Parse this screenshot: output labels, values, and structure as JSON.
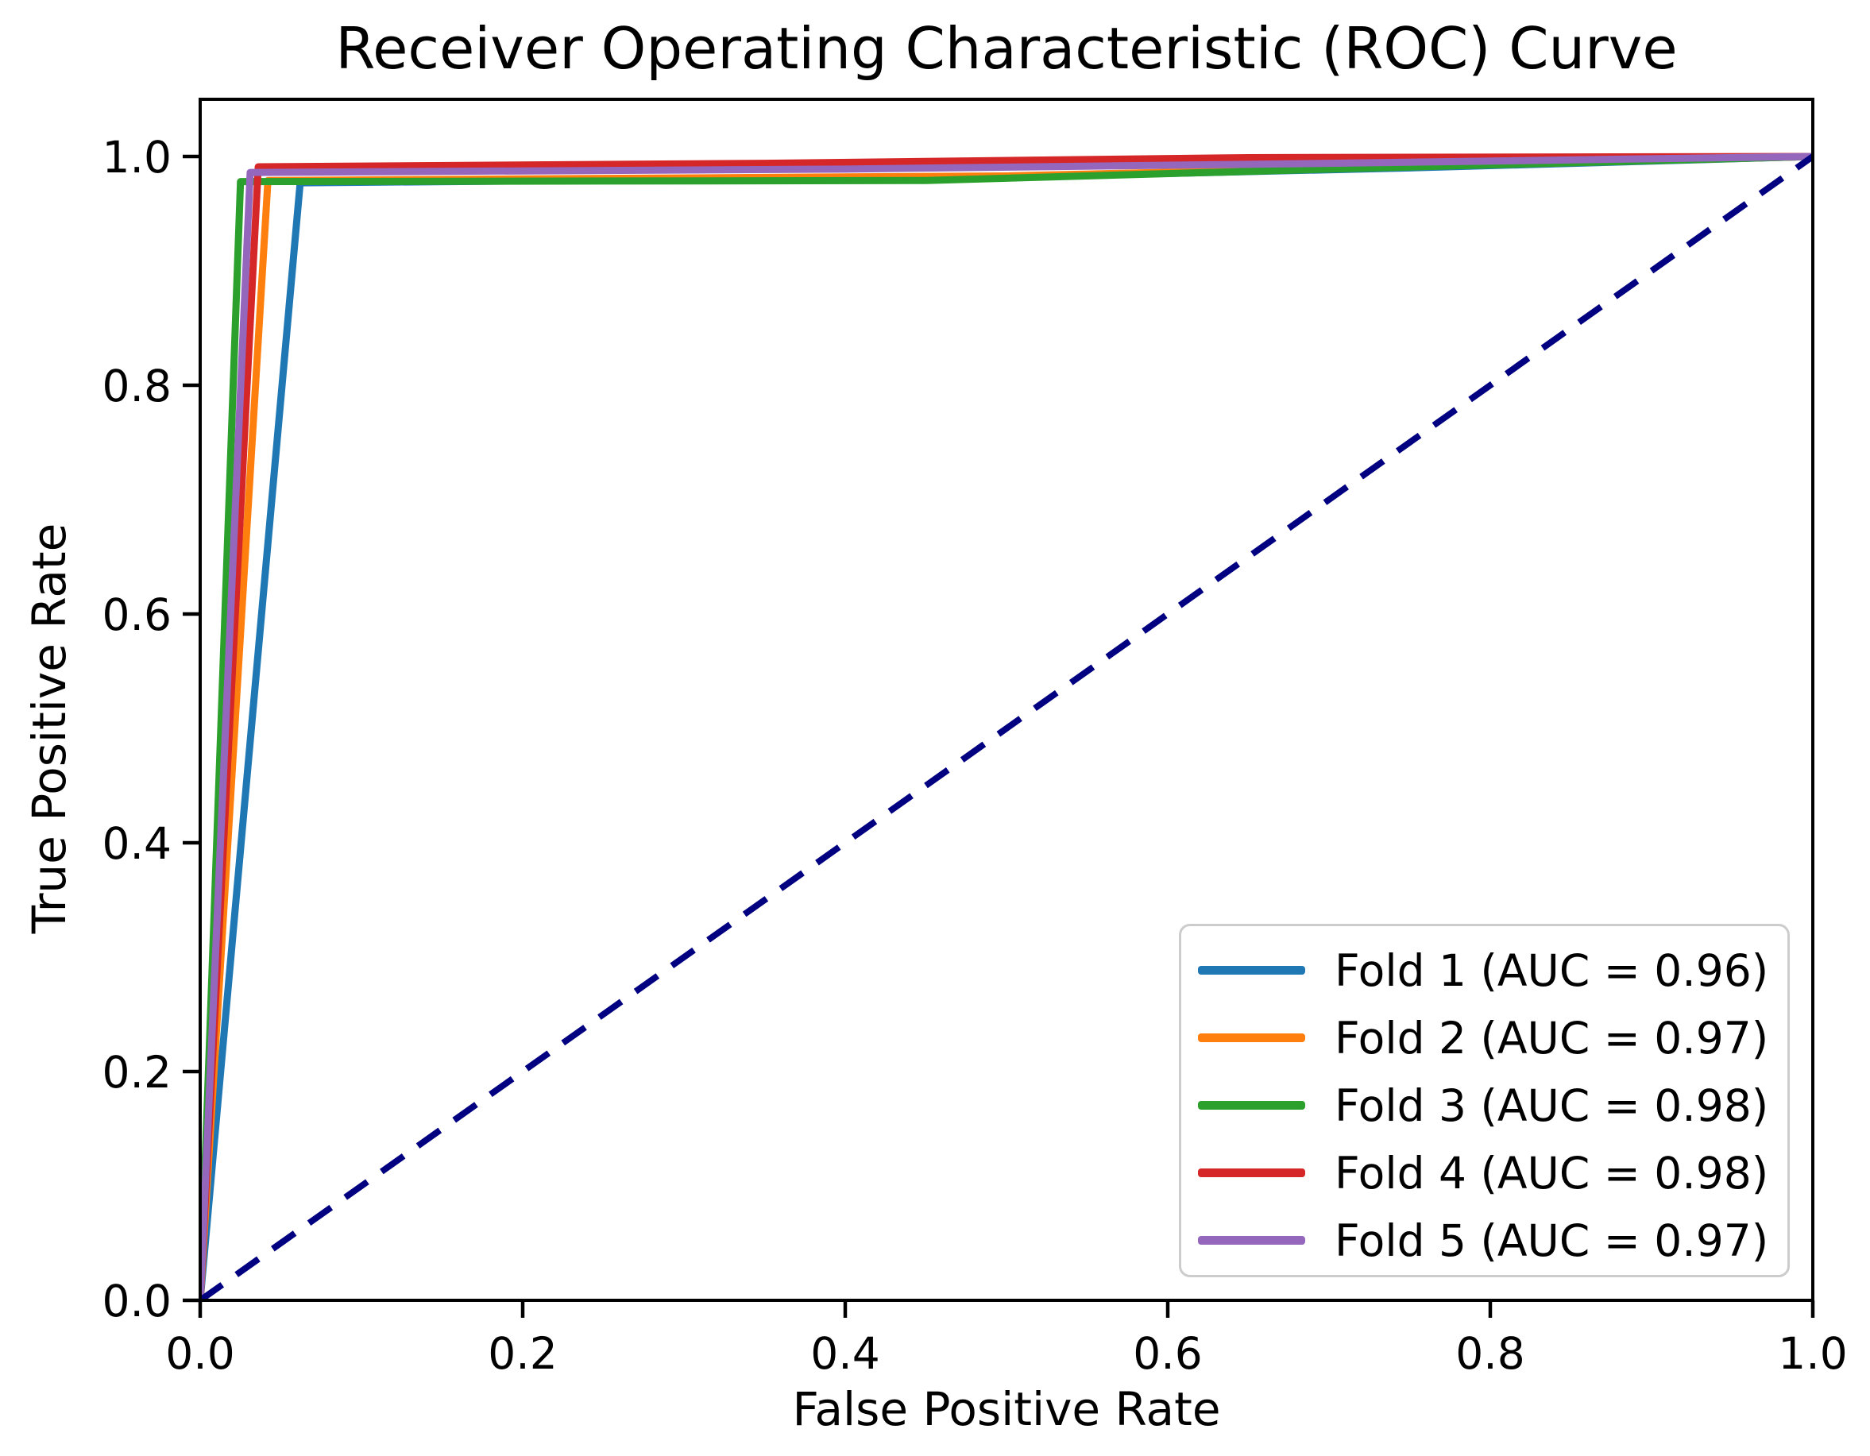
{
  "chart_data": {
    "type": "line",
    "title": "Receiver Operating Characteristic (ROC) Curve",
    "xlabel": "False Positive Rate",
    "ylabel": "True Positive Rate",
    "xlim": [
      0.0,
      1.0
    ],
    "ylim": [
      0.0,
      1.05
    ],
    "xticks": [
      "0.0",
      "0.2",
      "0.4",
      "0.6",
      "0.8",
      "1.0"
    ],
    "yticks": [
      "0.0",
      "0.2",
      "0.4",
      "0.6",
      "0.8",
      "1.0"
    ],
    "grid": false,
    "legend_position": "lower right",
    "axis_color": "#000000",
    "series": [
      {
        "name": "Fold 1 (AUC = 0.96)",
        "auc": 0.96,
        "color": "#1f77b4",
        "style": "solid",
        "in_legend": true,
        "points": [
          [
            0.0,
            0.0
          ],
          [
            0.062,
            0.977
          ],
          [
            0.5,
            0.982
          ],
          [
            0.75,
            0.99
          ],
          [
            1.0,
            1.0
          ]
        ]
      },
      {
        "name": "Fold 2 (AUC = 0.97)",
        "auc": 0.97,
        "color": "#ff7f0e",
        "style": "solid",
        "in_legend": true,
        "points": [
          [
            0.0,
            0.0
          ],
          [
            0.042,
            0.979
          ],
          [
            0.5,
            0.983
          ],
          [
            0.75,
            0.991
          ],
          [
            1.0,
            1.0
          ]
        ]
      },
      {
        "name": "Fold 3 (AUC = 0.98)",
        "auc": 0.98,
        "color": "#2ca02c",
        "style": "solid",
        "in_legend": true,
        "points": [
          [
            0.0,
            0.0
          ],
          [
            0.025,
            0.978
          ],
          [
            0.45,
            0.979
          ],
          [
            0.7,
            0.989
          ],
          [
            1.0,
            1.0
          ]
        ]
      },
      {
        "name": "Fold 4 (AUC = 0.98)",
        "auc": 0.98,
        "color": "#d62728",
        "style": "solid",
        "in_legend": true,
        "points": [
          [
            0.0,
            0.0
          ],
          [
            0.036,
            0.991
          ],
          [
            0.35,
            0.994
          ],
          [
            0.65,
            0.999
          ],
          [
            1.0,
            1.0
          ]
        ]
      },
      {
        "name": "Fold 5 (AUC = 0.97)",
        "auc": 0.97,
        "color": "#9467bd",
        "style": "solid",
        "in_legend": true,
        "points": [
          [
            0.0,
            0.0
          ],
          [
            0.031,
            0.986
          ],
          [
            0.4,
            0.989
          ],
          [
            0.7,
            0.994
          ],
          [
            1.0,
            1.0
          ]
        ]
      },
      {
        "name": "Chance diagonal",
        "color": "#000080",
        "style": "dashed",
        "in_legend": false,
        "points": [
          [
            0.0,
            0.0
          ],
          [
            1.0,
            1.0
          ]
        ]
      }
    ]
  }
}
